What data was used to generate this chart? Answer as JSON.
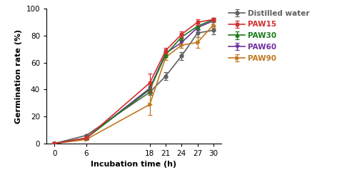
{
  "x": [
    0,
    6,
    18,
    21,
    24,
    27,
    30
  ],
  "series": {
    "Distilled water": {
      "y": [
        0,
        6,
        38,
        50,
        65,
        82,
        84
      ],
      "yerr": [
        0,
        1,
        2,
        3,
        3,
        3,
        3
      ],
      "color": "#606060",
      "marker": "o",
      "zorder": 2
    },
    "PAW15": {
      "y": [
        0,
        4,
        45,
        69,
        81,
        90,
        92
      ],
      "yerr": [
        0,
        0.5,
        7,
        2,
        2,
        2,
        1
      ],
      "color": "#d43030",
      "marker": "s",
      "zorder": 5
    },
    "PAW30": {
      "y": [
        0,
        4,
        40,
        66,
        79,
        87,
        92
      ],
      "yerr": [
        0,
        0.5,
        3,
        2,
        2,
        2,
        1
      ],
      "color": "#1a7a1a",
      "marker": "^",
      "zorder": 4
    },
    "PAW60": {
      "y": [
        0,
        4,
        41,
        67,
        75,
        86,
        91
      ],
      "yerr": [
        0,
        0.5,
        3,
        2,
        2,
        2,
        1
      ],
      "color": "#7030a0",
      "marker": "v",
      "zorder": 3
    },
    "PAW90": {
      "y": [
        0,
        3,
        29,
        64,
        73,
        75,
        88
      ],
      "yerr": [
        0,
        0.5,
        8,
        2,
        2,
        4,
        2
      ],
      "color": "#c07820",
      "marker": ">",
      "zorder": 3
    }
  },
  "xlabel": "Incubation time (h)",
  "ylabel": "Germination rate (%)",
  "xlim": [
    -1.5,
    31.5
  ],
  "ylim": [
    0,
    100
  ],
  "xticks": [
    0,
    6,
    18,
    21,
    24,
    27,
    30
  ],
  "yticks": [
    0,
    20,
    40,
    60,
    80,
    100
  ],
  "legend_order": [
    "Distilled water",
    "PAW15",
    "PAW30",
    "PAW60",
    "PAW90"
  ],
  "legend_colors": {
    "Distilled water": "#606060",
    "PAW15": "#d43030",
    "PAW30": "#1a7a1a",
    "PAW60": "#7030a0",
    "PAW90": "#c07820"
  }
}
